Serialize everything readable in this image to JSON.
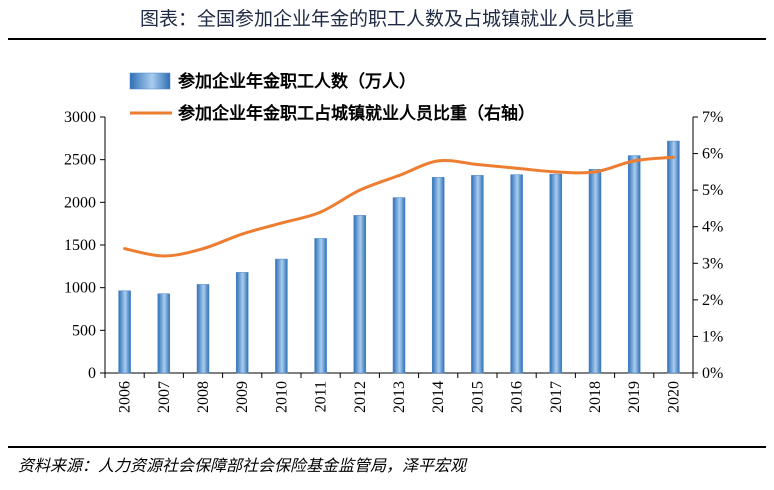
{
  "page": {
    "title": "图表：全国参加企业年金的职工人数及占城镇就业人员比重",
    "source": "资料来源：人力资源社会保障部社会保险基金监管局，泽平宏观"
  },
  "colors": {
    "bar": "#4a86c8",
    "line": "#ed7d31",
    "axis": "#000000"
  },
  "chart_data": {
    "type": "bar",
    "categories": [
      "2006",
      "2007",
      "2008",
      "2009",
      "2010",
      "2011",
      "2012",
      "2013",
      "2014",
      "2015",
      "2016",
      "2017",
      "2018",
      "2019",
      "2020"
    ],
    "ylim": [
      0,
      3000
    ],
    "ylim_right": [
      0,
      0.07
    ],
    "y_ticks": [
      0,
      500,
      1000,
      1500,
      2000,
      2500,
      3000
    ],
    "y_tick_labels": [
      "0",
      "500",
      "1000",
      "1500",
      "2000",
      "2500",
      "3000"
    ],
    "y2_ticks": [
      0,
      0.01,
      0.02,
      0.03,
      0.04,
      0.05,
      0.06,
      0.07
    ],
    "y2_tick_labels": [
      "0%",
      "1%",
      "2%",
      "3%",
      "4%",
      "5%",
      "6%",
      "7%"
    ],
    "legend_position": "top-left",
    "grid": false,
    "series": [
      {
        "name": "参加企业年金职工人数（万人）",
        "type": "bar",
        "axis": "left",
        "values": [
          964,
          929,
          1038,
          1179,
          1335,
          1577,
          1847,
          2056,
          2293,
          2316,
          2325,
          2331,
          2388,
          2548,
          2718
        ]
      },
      {
        "name": "参加企业年金职工占城镇就业人员比重（右轴）",
        "type": "line",
        "axis": "right",
        "values": [
          0.034,
          0.032,
          0.034,
          0.038,
          0.041,
          0.044,
          0.05,
          0.054,
          0.058,
          0.057,
          0.056,
          0.055,
          0.055,
          0.058,
          0.059
        ]
      }
    ]
  }
}
